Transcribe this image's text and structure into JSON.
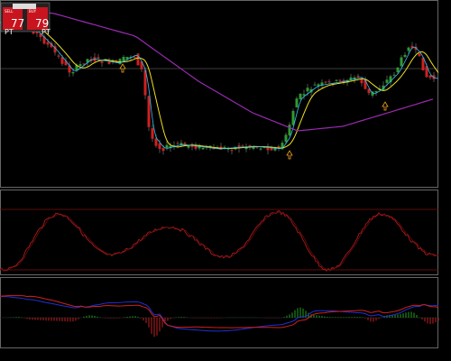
{
  "trade_panel": {
    "sell_label": "SELL",
    "sell_price": "77",
    "buy_label": "BUY",
    "buy_price": "79"
  },
  "markers": [
    "PT",
    "PT"
  ]
}
